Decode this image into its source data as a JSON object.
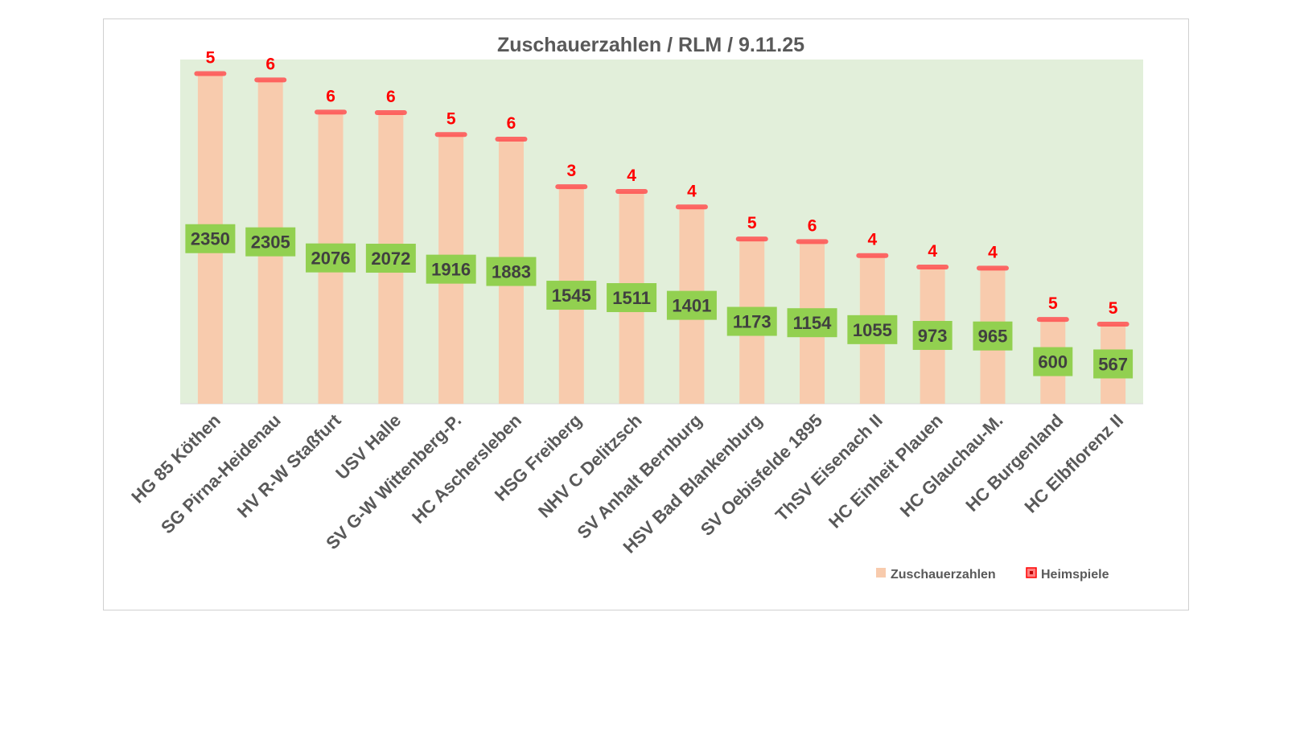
{
  "chart_data": {
    "type": "bar",
    "title": "Zuschauerzahlen / RLM / 9.11.25",
    "categories": [
      "HG 85 Köthen",
      "SG Pirna-Heidenau",
      "HV R-W Staßfurt",
      "USV Halle",
      "SV G-W Wittenberg-P.",
      "HC Aschersleben",
      "HSG Freiberg",
      "NHV C Delitzsch",
      "SV Anhalt Bernburg",
      "HSV Bad Blankenburg",
      "SV Oebisfelde 1895",
      "ThSV Eisenach II",
      "HC Einheit Plauen",
      "HC Glauchau-M.",
      "HC Burgenland",
      "HC Elbflorenz II"
    ],
    "series": [
      {
        "name": "Zuschauerzahlen",
        "type": "bar",
        "color": "#f8cbad",
        "values": [
          2350,
          2305,
          2076,
          2072,
          1916,
          1883,
          1545,
          1511,
          1401,
          1173,
          1154,
          1055,
          973,
          965,
          600,
          567
        ]
      },
      {
        "name": "Heimspiele",
        "type": "marker",
        "color": "#ff0000",
        "values": [
          5,
          6,
          6,
          6,
          5,
          6,
          3,
          4,
          4,
          5,
          6,
          4,
          4,
          4,
          5,
          5
        ]
      }
    ],
    "ylim": [
      0,
      2450
    ],
    "xlabel": "",
    "ylabel": "",
    "legend": "bottom-right",
    "plot_background": "#e2efda",
    "label_background": "#92d050"
  }
}
